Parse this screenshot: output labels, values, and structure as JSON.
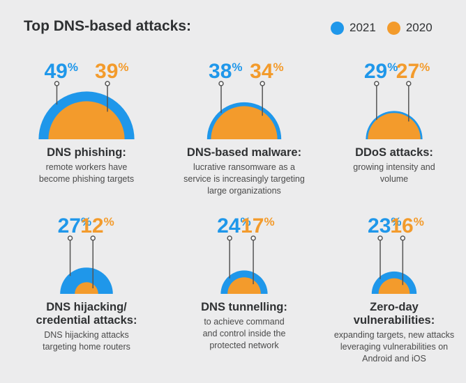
{
  "header": {
    "title": "Top DNS-based attacks:"
  },
  "legend": [
    {
      "label": "2021",
      "color": "#1f97ea"
    },
    {
      "label": "2020",
      "color": "#f39b2c"
    }
  ],
  "colors": {
    "y2021": "#1f97ea",
    "y2020": "#f39b2c",
    "stem": "#555555"
  },
  "chart_data": [
    {
      "type": "pie",
      "title": "DNS phishing:",
      "description": [
        "remote workers have",
        "become phishing targets"
      ],
      "series": [
        {
          "name": "2021",
          "value": 49,
          "label": "49%"
        },
        {
          "name": "2020",
          "value": 39,
          "label": "39%"
        }
      ]
    },
    {
      "type": "pie",
      "title": "DNS-based malware:",
      "description": [
        "lucrative ransomware as a",
        "service is increasingly targeting",
        "large organizations"
      ],
      "series": [
        {
          "name": "2021",
          "value": 38,
          "label": "38%"
        },
        {
          "name": "2020",
          "value": 34,
          "label": "34%"
        }
      ]
    },
    {
      "type": "pie",
      "title": "DDoS attacks:",
      "description": [
        "growing intensity and",
        "volume"
      ],
      "series": [
        {
          "name": "2021",
          "value": 29,
          "label": "29%"
        },
        {
          "name": "2020",
          "value": 27,
          "label": "27%"
        }
      ]
    },
    {
      "type": "pie",
      "title": "DNS hijacking/ credential attacks:",
      "title_lines": [
        "DNS hijacking/",
        "credential attacks:"
      ],
      "description": [
        "DNS hijacking attacks",
        "targeting home routers"
      ],
      "series": [
        {
          "name": "2021",
          "value": 27,
          "label": "27%"
        },
        {
          "name": "2020",
          "value": 12,
          "label": "12%"
        }
      ]
    },
    {
      "type": "pie",
      "title": "DNS tunnelling:",
      "description": [
        "to achieve command",
        "and control inside the",
        "protected network"
      ],
      "series": [
        {
          "name": "2021",
          "value": 24,
          "label": "24%"
        },
        {
          "name": "2020",
          "value": 17,
          "label": "17%"
        }
      ]
    },
    {
      "type": "pie",
      "title": "Zero-day vulnerabilities:",
      "title_lines": [
        "Zero-day",
        "vulnerabilities:"
      ],
      "description": [
        "expanding targets, new attacks",
        "leveraging vulnerabilities on",
        "Android and iOS"
      ],
      "series": [
        {
          "name": "2021",
          "value": 23,
          "label": "23%"
        },
        {
          "name": "2020",
          "value": 16,
          "label": "16%"
        }
      ]
    }
  ]
}
